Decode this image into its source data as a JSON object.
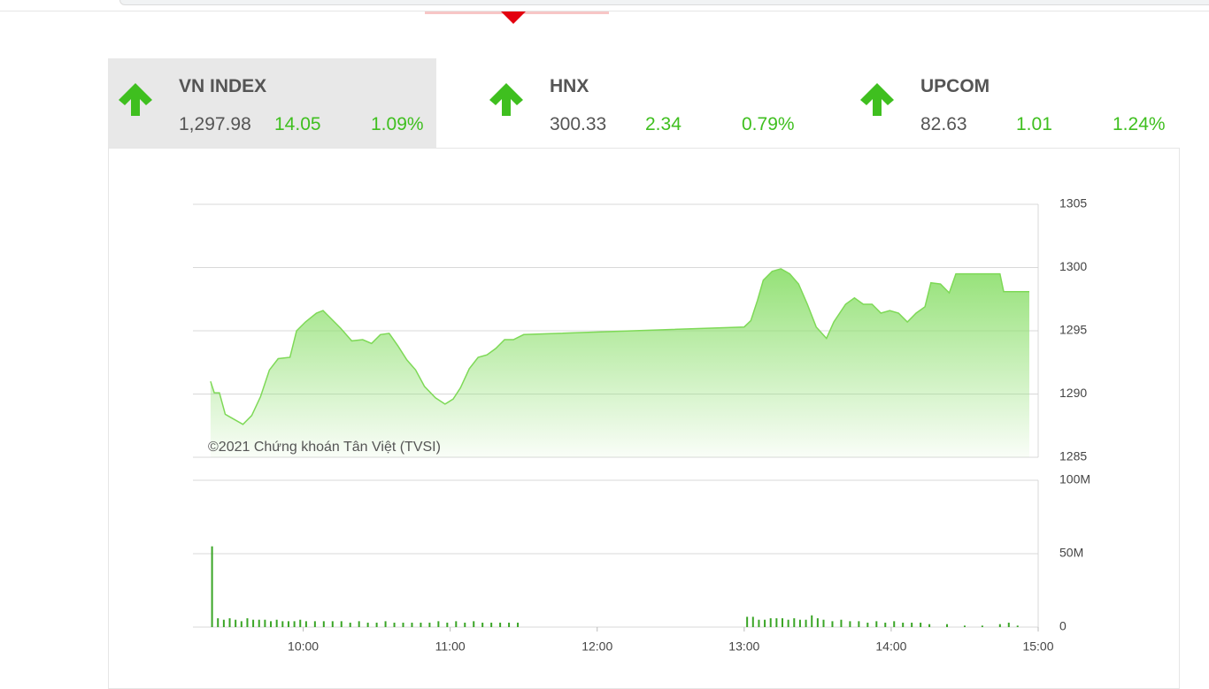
{
  "indices": [
    {
      "name": "VN INDEX",
      "price": "1,297.98",
      "change": "14.05",
      "percent": "1.09%"
    },
    {
      "name": "HNX",
      "price": "300.33",
      "change": "2.34",
      "percent": "0.79%"
    },
    {
      "name": "UPCOM",
      "price": "82.63",
      "change": "1.01",
      "percent": "1.24%"
    }
  ],
  "watermark": "©2021 Chứng khoán Tân Việt (TVSI)",
  "chart_data": [
    {
      "type": "line",
      "color": "#7ed957",
      "x": [
        9.37,
        9.395,
        9.43,
        9.47,
        9.515,
        9.59,
        9.65,
        9.71,
        9.77,
        9.83,
        9.91,
        9.955,
        10.015,
        10.09,
        10.135,
        10.195,
        10.255,
        10.33,
        10.405,
        10.465,
        10.525,
        10.585,
        10.645,
        10.705,
        10.765,
        10.825,
        10.9,
        10.965,
        11.02,
        11.07,
        11.13,
        11.19,
        11.25,
        11.31,
        11.37,
        11.43,
        11.5,
        13.0,
        13.045,
        13.09,
        13.13,
        13.19,
        13.25,
        13.31,
        13.37,
        13.43,
        13.49,
        13.56,
        13.61,
        13.69,
        13.75,
        13.81,
        13.87,
        13.93,
        13.99,
        14.05,
        14.11,
        14.17,
        14.23,
        14.27,
        14.335,
        14.395,
        14.44,
        14.74,
        14.765,
        14.94
      ],
      "values": [
        1291.0,
        1290.1,
        1290.1,
        1288.4,
        1288.1,
        1287.6,
        1288.3,
        1289.8,
        1291.9,
        1292.8,
        1292.9,
        1295.0,
        1295.7,
        1296.4,
        1296.6,
        1295.9,
        1295.2,
        1294.2,
        1294.3,
        1294.0,
        1294.7,
        1294.8,
        1293.8,
        1292.7,
        1291.9,
        1290.6,
        1289.7,
        1289.2,
        1289.6,
        1290.5,
        1292.0,
        1292.9,
        1293.1,
        1293.6,
        1294.3,
        1294.3,
        1294.7,
        1295.3,
        1295.8,
        1297.4,
        1299.0,
        1299.7,
        1299.9,
        1299.5,
        1298.7,
        1297.1,
        1295.3,
        1294.4,
        1295.7,
        1297.1,
        1297.6,
        1297.1,
        1297.1,
        1296.4,
        1296.6,
        1296.4,
        1295.7,
        1296.4,
        1296.9,
        1298.8,
        1298.7,
        1298.0,
        1299.5,
        1299.5,
        1298.1,
        1298.1
      ],
      "xlim": [
        9.25,
        15
      ],
      "ylim": [
        1285,
        1305
      ],
      "yticks": [
        1285,
        1290,
        1295,
        1300,
        1305
      ],
      "grid": true
    },
    {
      "type": "bar",
      "color": "#3aa526",
      "x": [
        9.38,
        9.42,
        9.46,
        9.5,
        9.54,
        9.58,
        9.62,
        9.66,
        9.7,
        9.74,
        9.78,
        9.82,
        9.86,
        9.9,
        9.94,
        9.98,
        10.02,
        10.08,
        10.14,
        10.2,
        10.26,
        10.32,
        10.38,
        10.44,
        10.5,
        10.56,
        10.62,
        10.68,
        10.74,
        10.8,
        10.86,
        10.92,
        10.98,
        11.04,
        11.1,
        11.16,
        11.22,
        11.28,
        11.34,
        11.4,
        11.46,
        13.02,
        13.06,
        13.1,
        13.14,
        13.18,
        13.22,
        13.26,
        13.3,
        13.34,
        13.38,
        13.42,
        13.46,
        13.5,
        13.54,
        13.6,
        13.66,
        13.72,
        13.78,
        13.84,
        13.9,
        13.96,
        14.02,
        14.08,
        14.14,
        14.2,
        14.26,
        14.38,
        14.5,
        14.62,
        14.74,
        14.8,
        14.86
      ],
      "values": [
        55,
        6,
        5,
        6,
        5,
        4,
        6,
        5,
        5,
        5,
        4,
        5,
        4,
        4,
        4,
        5,
        4,
        4,
        4,
        4,
        4,
        3,
        4,
        3,
        3,
        4,
        3,
        3,
        3,
        3,
        3,
        4,
        3,
        4,
        3,
        4,
        3,
        3,
        3,
        3,
        3,
        7,
        7,
        5,
        5,
        6,
        6,
        6,
        5,
        6,
        5,
        5,
        8,
        6,
        5,
        4,
        5,
        4,
        4,
        3,
        4,
        3,
        4,
        3,
        3,
        3,
        2,
        2,
        1,
        1,
        2,
        3,
        1
      ],
      "xlim": [
        9.25,
        15
      ],
      "ylim": [
        0,
        100
      ],
      "xticks": [
        {
          "value": 10,
          "label": "10:00"
        },
        {
          "value": 11,
          "label": "11:00"
        },
        {
          "value": 12,
          "label": "12:00"
        },
        {
          "value": 13,
          "label": "13:00"
        },
        {
          "value": 14,
          "label": "14:00"
        },
        {
          "value": 15,
          "label": "15:00"
        }
      ],
      "yticks": [
        0,
        {
          "value": 50,
          "label": "50M"
        },
        {
          "value": 100,
          "label": "100M"
        }
      ],
      "grid": true
    }
  ]
}
